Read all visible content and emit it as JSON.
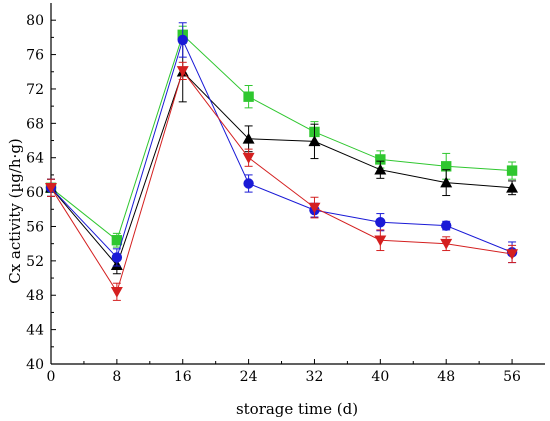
{
  "chart_data": {
    "type": "line",
    "xlabel": "storage time (d)",
    "ylabel": "Cx activity (µg/h·g)",
    "x": [
      0,
      8,
      16,
      24,
      32,
      40,
      48,
      56
    ],
    "xlim": [
      0,
      60
    ],
    "ylim": [
      40,
      82
    ],
    "xticks": [
      "0",
      "8",
      "16",
      "24",
      "32",
      "40",
      "48",
      "56"
    ],
    "yticks": [
      "40",
      "44",
      "48",
      "52",
      "56",
      "60",
      "64",
      "68",
      "72",
      "76",
      "80"
    ],
    "grid": false,
    "series": [
      {
        "marker": "square",
        "color": "#2fc72f",
        "values": [
          60.5,
          54.4,
          78.3,
          71.1,
          67.0,
          63.8,
          63.0,
          62.5
        ],
        "errors": [
          1.0,
          0.8,
          1.0,
          1.3,
          1.2,
          1.0,
          1.5,
          1.0
        ]
      },
      {
        "marker": "triangle-up",
        "color": "#000000",
        "values": [
          60.5,
          51.5,
          74.0,
          66.2,
          65.9,
          62.6,
          61.1,
          60.5
        ],
        "errors": [
          1.0,
          1.0,
          3.5,
          1.5,
          2.0,
          1.0,
          1.5,
          0.8
        ]
      },
      {
        "marker": "circle",
        "color": "#1a1ad6",
        "values": [
          60.5,
          52.4,
          77.7,
          61.0,
          57.9,
          56.5,
          56.1,
          53.0
        ],
        "errors": [
          1.0,
          1.0,
          2.0,
          1.0,
          0.8,
          1.0,
          0.5,
          1.2
        ]
      },
      {
        "marker": "triangle-down",
        "color": "#d42020",
        "values": [
          60.5,
          48.4,
          74.1,
          64.0,
          58.2,
          54.4,
          54.0,
          52.8
        ],
        "errors": [
          1.0,
          1.0,
          1.0,
          1.0,
          1.2,
          1.2,
          0.8,
          1.0
        ]
      }
    ]
  }
}
